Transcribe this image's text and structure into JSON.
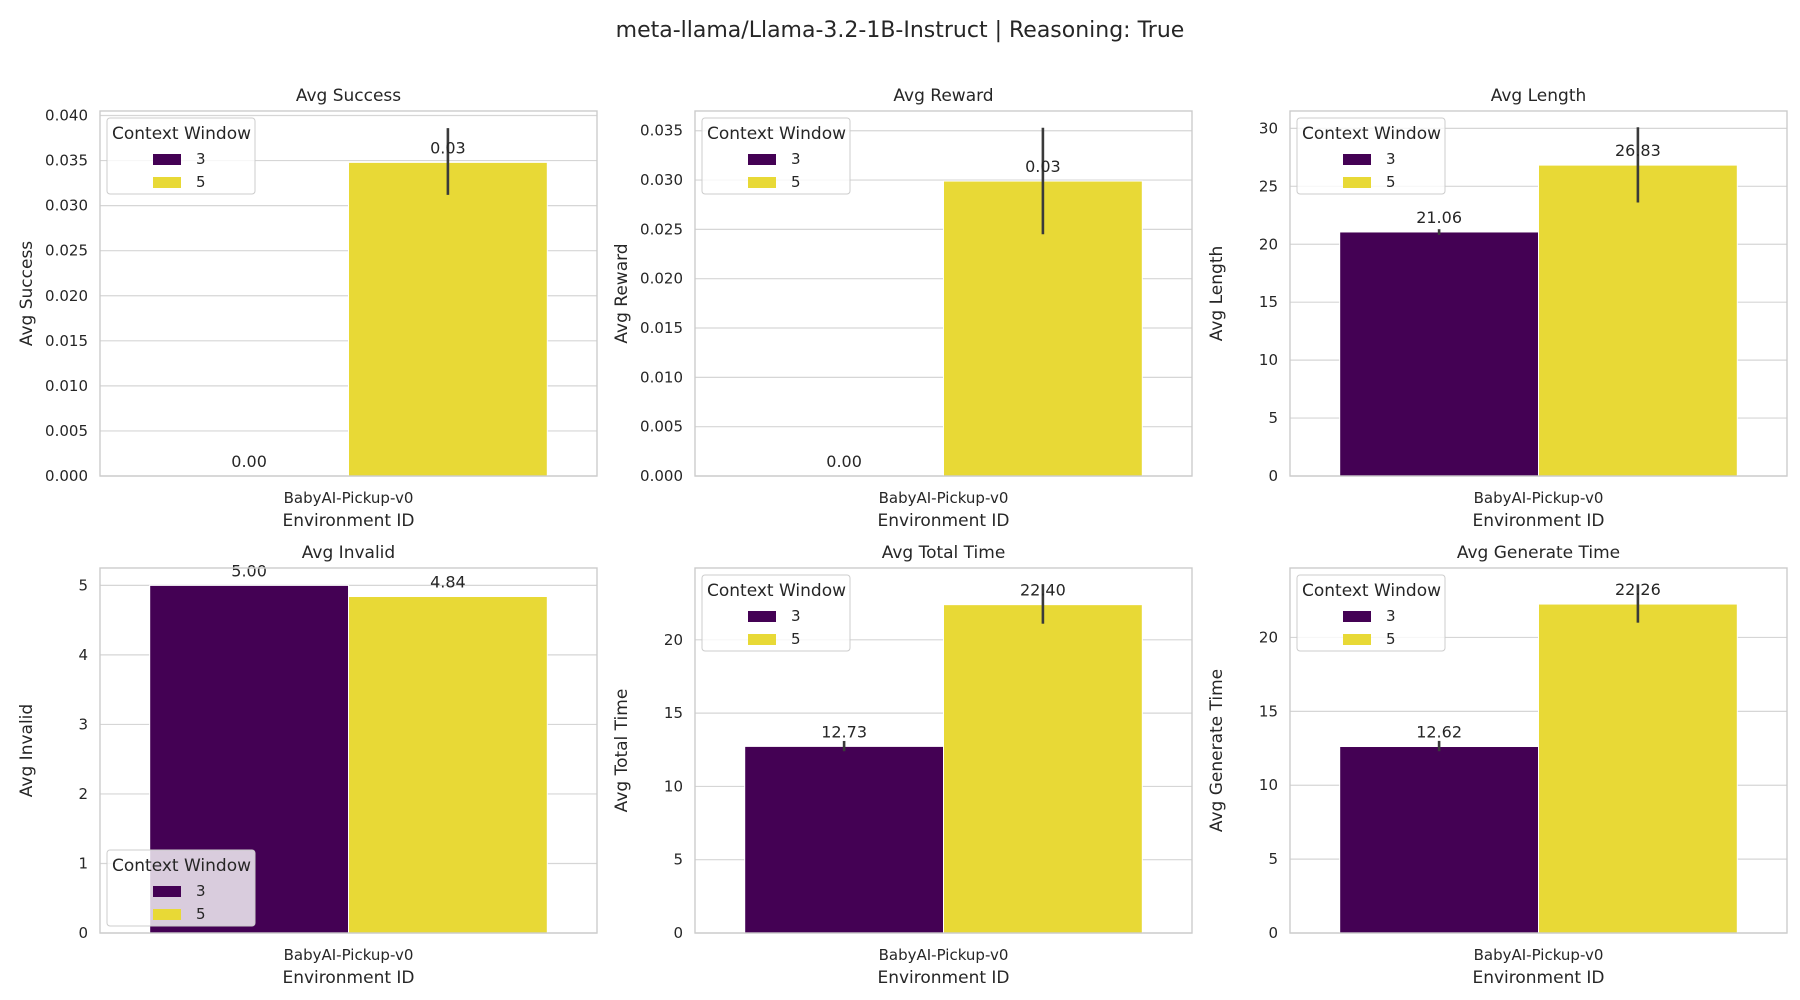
{
  "figure": {
    "title": "meta-llama/Llama-3.2-1B-Instruct | Reasoning: True"
  },
  "colors": {
    "series_3": "#440154",
    "series_5": "#e8d936",
    "grid": "#d6d6d6",
    "spine": "#cccccc",
    "error_bar": "#3a3a3a"
  },
  "chart_data": [
    {
      "type": "bar",
      "title": "Avg Success",
      "xlabel": "Environment ID",
      "ylabel": "Avg Success",
      "categories": [
        "BabyAI-Pickup-v0"
      ],
      "legend": {
        "title": "Context Window",
        "placement": "upper-left"
      },
      "series": [
        {
          "name": "3",
          "values": [
            0.0
          ],
          "error": [
            0.0,
            0.0
          ],
          "label": "0.00"
        },
        {
          "name": "5",
          "values": [
            0.0348
          ],
          "error": [
            0.0312,
            0.0386
          ],
          "label": "0.03"
        }
      ],
      "yticks": [
        0,
        0.005,
        0.01,
        0.015,
        0.02,
        0.025,
        0.03,
        0.035,
        0.04
      ],
      "ytick_labels": [
        "0.000",
        "0.005",
        "0.010",
        "0.015",
        "0.020",
        "0.025",
        "0.030",
        "0.035",
        "0.040"
      ],
      "ylim": [
        0,
        0.0405
      ],
      "grid": true
    },
    {
      "type": "bar",
      "title": "Avg Reward",
      "xlabel": "Environment ID",
      "ylabel": "Avg Reward",
      "categories": [
        "BabyAI-Pickup-v0"
      ],
      "legend": {
        "title": "Context Window",
        "placement": "upper-left"
      },
      "series": [
        {
          "name": "3",
          "values": [
            0.0
          ],
          "error": [
            0.0,
            0.0
          ],
          "label": "0.00"
        },
        {
          "name": "5",
          "values": [
            0.0299
          ],
          "error": [
            0.0245,
            0.0353
          ],
          "label": "0.03"
        }
      ],
      "yticks": [
        0,
        0.005,
        0.01,
        0.015,
        0.02,
        0.025,
        0.03,
        0.035
      ],
      "ytick_labels": [
        "0.000",
        "0.005",
        "0.010",
        "0.015",
        "0.020",
        "0.025",
        "0.030",
        "0.035"
      ],
      "ylim": [
        0,
        0.037
      ],
      "grid": true
    },
    {
      "type": "bar",
      "title": "Avg Length",
      "xlabel": "Environment ID",
      "ylabel": "Avg Length",
      "categories": [
        "BabyAI-Pickup-v0"
      ],
      "legend": {
        "title": "Context Window",
        "placement": "upper-left"
      },
      "series": [
        {
          "name": "3",
          "values": [
            21.06
          ],
          "error": [
            20.8,
            21.3
          ],
          "label": "21.06"
        },
        {
          "name": "5",
          "values": [
            26.83
          ],
          "error": [
            23.6,
            30.1
          ],
          "label": "26.83"
        }
      ],
      "yticks": [
        0,
        5,
        10,
        15,
        20,
        25,
        30
      ],
      "ytick_labels": [
        "0",
        "5",
        "10",
        "15",
        "20",
        "25",
        "30"
      ],
      "ylim": [
        0,
        31.5
      ],
      "grid": true
    },
    {
      "type": "bar",
      "title": "Avg Invalid",
      "xlabel": "Environment ID",
      "ylabel": "Avg Invalid",
      "categories": [
        "BabyAI-Pickup-v0"
      ],
      "legend": {
        "title": "Context Window",
        "placement": "lower-left"
      },
      "series": [
        {
          "name": "3",
          "values": [
            5.0
          ],
          "error": [
            5.0,
            5.0
          ],
          "label": "5.00"
        },
        {
          "name": "5",
          "values": [
            4.84
          ],
          "error": [
            4.84,
            4.84
          ],
          "label": "4.84"
        }
      ],
      "yticks": [
        0,
        1,
        2,
        3,
        4,
        5
      ],
      "ytick_labels": [
        "0",
        "1",
        "2",
        "3",
        "4",
        "5"
      ],
      "ylim": [
        0,
        5.25
      ],
      "grid": true
    },
    {
      "type": "bar",
      "title": "Avg Total Time",
      "xlabel": "Environment ID",
      "ylabel": "Avg Total Time",
      "categories": [
        "BabyAI-Pickup-v0"
      ],
      "legend": {
        "title": "Context Window",
        "placement": "upper-left"
      },
      "series": [
        {
          "name": "3",
          "values": [
            12.73
          ],
          "error": [
            12.4,
            13.1
          ],
          "label": "12.73"
        },
        {
          "name": "5",
          "values": [
            22.4
          ],
          "error": [
            21.1,
            23.8
          ],
          "label": "22.40"
        }
      ],
      "yticks": [
        0,
        5,
        10,
        15,
        20
      ],
      "ytick_labels": [
        "0",
        "5",
        "10",
        "15",
        "20"
      ],
      "ylim": [
        0,
        24.9
      ],
      "grid": true
    },
    {
      "type": "bar",
      "title": "Avg Generate Time",
      "xlabel": "Environment ID",
      "ylabel": "Avg Generate Time",
      "categories": [
        "BabyAI-Pickup-v0"
      ],
      "legend": {
        "title": "Context Window",
        "placement": "upper-left"
      },
      "series": [
        {
          "name": "3",
          "values": [
            12.62
          ],
          "error": [
            12.3,
            13.0
          ],
          "label": "12.62"
        },
        {
          "name": "5",
          "values": [
            22.26
          ],
          "error": [
            21.0,
            23.6
          ],
          "label": "22.26"
        }
      ],
      "yticks": [
        0,
        5,
        10,
        15,
        20
      ],
      "ytick_labels": [
        "0",
        "5",
        "10",
        "15",
        "20"
      ],
      "ylim": [
        0,
        24.7
      ],
      "grid": true
    }
  ]
}
